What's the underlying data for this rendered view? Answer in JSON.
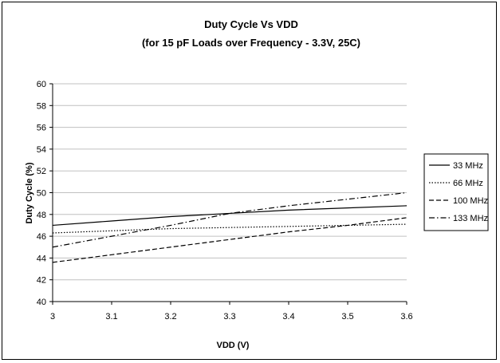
{
  "chart_data": {
    "type": "line",
    "title": "Duty Cycle Vs VDD",
    "subtitle": "(for 15 pF Loads over Frequency - 3.3V, 25C)",
    "xlabel": "VDD (V)",
    "ylabel": "Duty Cycle (%)",
    "xlim": [
      3,
      3.6
    ],
    "ylim": [
      40,
      60
    ],
    "x_ticks": [
      "3",
      "3.1",
      "3.2",
      "3.3",
      "3.4",
      "3.5",
      "3.6"
    ],
    "y_ticks": [
      "40",
      "42",
      "44",
      "46",
      "48",
      "50",
      "52",
      "54",
      "56",
      "58",
      "60"
    ],
    "grid": "horizontal",
    "legend_position": "right",
    "x": [
      3.0,
      3.1,
      3.2,
      3.3,
      3.4,
      3.5,
      3.6
    ],
    "series": [
      {
        "name": "33 MHz",
        "dash": "solid",
        "values": [
          47.0,
          47.4,
          47.8,
          48.1,
          48.4,
          48.6,
          48.8
        ]
      },
      {
        "name": "66 MHz",
        "dash": "dotted",
        "values": [
          46.3,
          46.5,
          46.7,
          46.8,
          46.9,
          47.0,
          47.1
        ]
      },
      {
        "name": "100 MHz",
        "dash": "dashed",
        "values": [
          43.6,
          44.3,
          45.0,
          45.7,
          46.4,
          47.0,
          47.7
        ]
      },
      {
        "name": "133 MHz",
        "dash": "dash-dot",
        "values": [
          45.0,
          46.0,
          47.0,
          48.1,
          48.8,
          49.4,
          50.0
        ]
      }
    ]
  }
}
